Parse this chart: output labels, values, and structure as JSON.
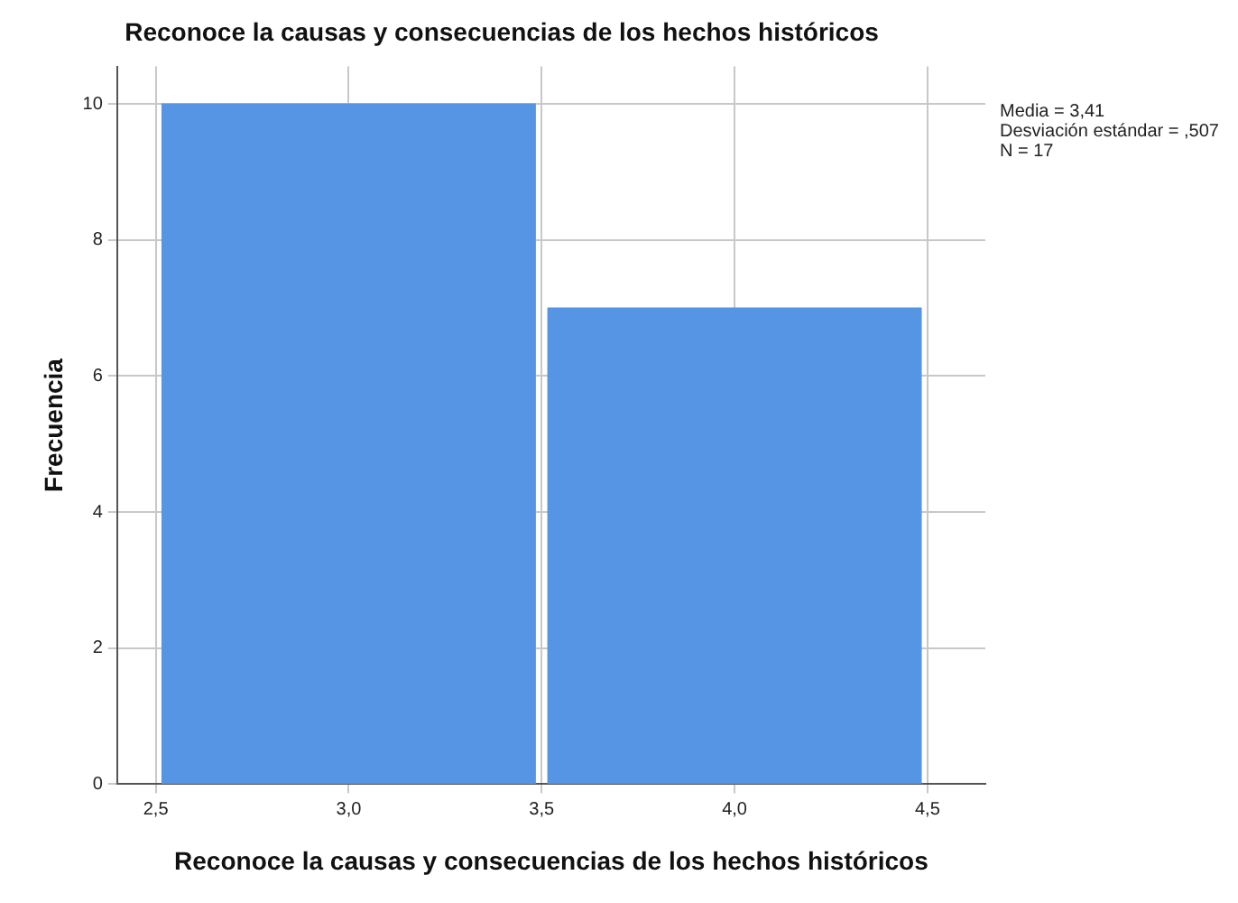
{
  "chart_data": {
    "type": "histogram",
    "title": "Reconoce la causas y consecuencias de los hechos históricos",
    "xlabel": "Reconoce la causas y consecuencias de los hechos históricos",
    "ylabel": "Frecuencia",
    "bins": [
      2.5,
      3.5,
      4.5
    ],
    "values": [
      10,
      7
    ],
    "color": "#5595e3",
    "xlim": [
      2.4,
      4.65
    ],
    "xticks": [
      {
        "value": 2.5,
        "label": "2,5"
      },
      {
        "value": 3,
        "label": "3,0"
      },
      {
        "value": 3.5,
        "label": "3,5"
      },
      {
        "value": 4,
        "label": "4,0"
      },
      {
        "value": 4.5,
        "label": "4,5"
      }
    ],
    "ylim": [
      0,
      10.55
    ],
    "yticks": [
      0,
      2,
      4,
      6,
      8,
      10
    ],
    "grid": true,
    "legend": false,
    "annotations": [
      "Media = 3,41",
      "Desviación estándar = ,507",
      "N = 17"
    ]
  }
}
